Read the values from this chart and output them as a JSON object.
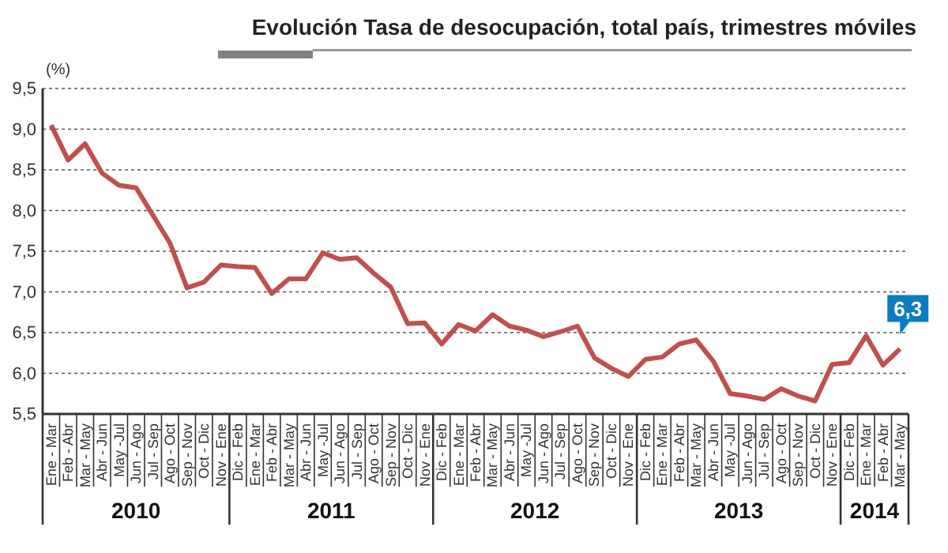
{
  "chart_data": {
    "type": "line",
    "title": "Evolución Tasa de desocupación, total país, trimestres móviles",
    "ylabel": "(%)",
    "categories": [
      "Ene - Mar",
      "Feb - Abr",
      "Mar - May",
      "Abr - Jun",
      "May -Jul",
      "Jun - Ago",
      "Jul - Sep",
      "Ago - Oct",
      "Sep - Nov",
      "Oct - Dic",
      "Nov - Ene",
      "Dic - Feb",
      "Ene - Mar",
      "Feb - Abr",
      "Mar - May",
      "Abr - Jun",
      "May -Jul",
      "Jun - Ago",
      "Jul - Sep",
      "Ago - Oct",
      "Sep - Nov",
      "Oct - Dic",
      "Nov - Ene",
      "Dic - Feb",
      "Ene - Mar",
      "Feb - Abr",
      "Mar - May",
      "Abr - Jun",
      "May -Jul",
      "Jun - Ago",
      "Jul - Sep",
      "Ago - Oct",
      "Sep - Nov",
      "Oct - Dic",
      "Nov - Ene",
      "Dic - Feb",
      "Ene - Mar",
      "Feb - Abr",
      "Mar - May",
      "Abr - Jun",
      "May -Jul",
      "Jun - Ago",
      "Jul - Sep",
      "Ago - Oct",
      "Sep - Nov",
      "Oct - Dic",
      "Nov - Ene",
      "Dic - Feb",
      "Ene - Mar",
      "Feb - Abr",
      "Mar - May"
    ],
    "series": [
      {
        "color": "#c0504d",
        "values": [
          9.05,
          8.62,
          8.82,
          8.46,
          8.31,
          8.28,
          7.94,
          7.6,
          7.05,
          7.12,
          7.33,
          7.31,
          7.3,
          6.98,
          7.16,
          7.16,
          7.48,
          7.4,
          7.42,
          7.23,
          7.06,
          6.61,
          6.62,
          6.36,
          6.6,
          6.52,
          6.72,
          6.58,
          6.53,
          6.45,
          6.51,
          6.58,
          6.19,
          6.06,
          5.96,
          6.17,
          6.2,
          6.36,
          6.41,
          6.15,
          5.75,
          5.72,
          5.68,
          5.81,
          5.72,
          5.66,
          6.11,
          6.13,
          6.46,
          6.1,
          6.3
        ],
        "value_labels": [
          null,
          null,
          null,
          null,
          null,
          null,
          null,
          null,
          null,
          null,
          null,
          null,
          null,
          null,
          null,
          null,
          null,
          null,
          null,
          null,
          null,
          null,
          null,
          null,
          null,
          null,
          null,
          null,
          null,
          null,
          null,
          null,
          null,
          null,
          null,
          null,
          null,
          null,
          null,
          null,
          null,
          null,
          null,
          null,
          null,
          null,
          null,
          null,
          null,
          null,
          "6,3"
        ]
      }
    ],
    "ylim": [
      5.5,
      9.5
    ],
    "yticks": [
      {
        "value": 5.5,
        "label": "5,5"
      },
      {
        "value": 6,
        "label": "6,0"
      },
      {
        "value": 6.5,
        "label": "6,5"
      },
      {
        "value": 7,
        "label": "7,0"
      },
      {
        "value": 7.5,
        "label": "7,5"
      },
      {
        "value": 8,
        "label": "8,0"
      },
      {
        "value": 8.5,
        "label": "8,5"
      },
      {
        "value": 9,
        "label": "9,0"
      },
      {
        "value": 9.5,
        "label": "9,5"
      }
    ],
    "grid": "y",
    "marker": "none",
    "line_style": "solid",
    "annotations": [
      "2010",
      "2011",
      "2012",
      "2013",
      "2014"
    ]
  }
}
